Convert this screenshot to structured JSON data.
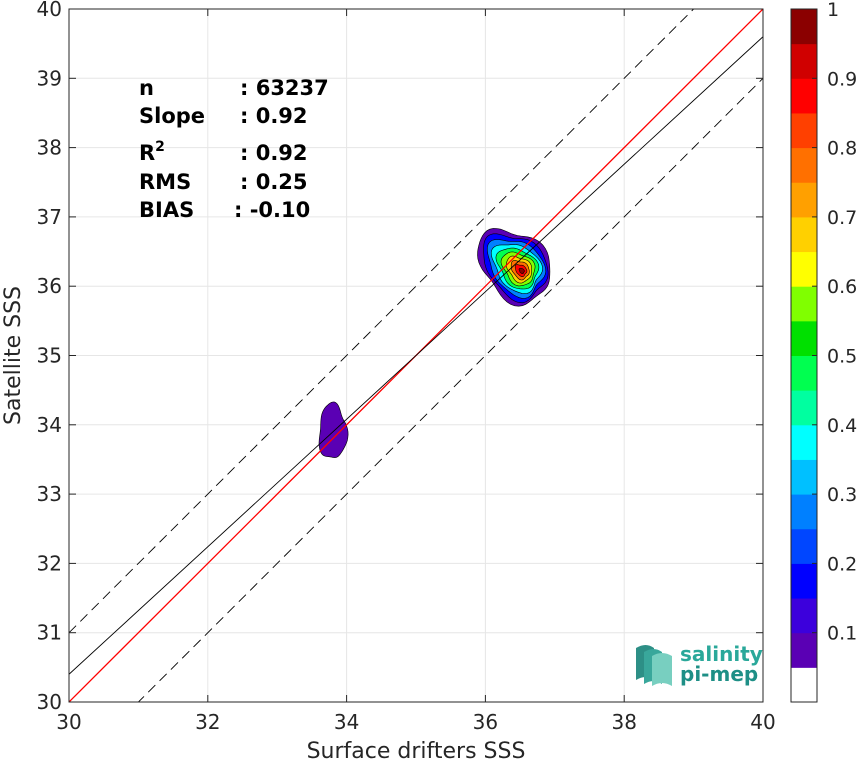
{
  "chart_data": {
    "type": "heatmap",
    "subtype": "density scatter (filled contours) with reference lines",
    "xlabel": "Surface drifters SSS",
    "ylabel": "Satellite SSS",
    "xlim": [
      30,
      40
    ],
    "ylim": [
      30,
      40
    ],
    "xticks": [
      "30",
      "32",
      "34",
      "36",
      "38",
      "40"
    ],
    "yticks": [
      "30",
      "31",
      "32",
      "33",
      "34",
      "35",
      "36",
      "37",
      "38",
      "39",
      "40"
    ],
    "grid": true,
    "stats": [
      {
        "label": "n",
        "value": ": 63237"
      },
      {
        "label": "Slope",
        "value": ": 0.92"
      },
      {
        "label": "R2",
        "value": ": 0.92"
      },
      {
        "label": "RMS",
        "value": ": 0.25"
      },
      {
        "label": "BIAS",
        "value": ": -0.10"
      }
    ],
    "lines": [
      {
        "style": "identity",
        "color": "#ff0000",
        "points": [
          [
            30,
            30
          ],
          [
            40,
            40
          ]
        ]
      },
      {
        "style": "regression",
        "color": "#000000",
        "points": [
          [
            30,
            30.4
          ],
          [
            40,
            39.6
          ]
        ]
      },
      {
        "style": "dashed",
        "color": "#000000",
        "points": [
          [
            30,
            31.0
          ],
          [
            40,
            41.0
          ]
        ]
      },
      {
        "style": "dashed",
        "color": "#000000",
        "points": [
          [
            30.0,
            29.0
          ],
          [
            40,
            39.0
          ]
        ]
      }
    ],
    "density_clusters": [
      {
        "center": [
          36.42,
          36.3
        ],
        "extent_x": [
          35.6,
          37.05
        ],
        "extent_y": [
          35.35,
          37.0
        ],
        "peak": 1.0
      },
      {
        "center": [
          33.8,
          33.9
        ],
        "extent_x": [
          33.6,
          34.0
        ],
        "extent_y": [
          33.5,
          34.3
        ],
        "peak": 0.1
      }
    ],
    "colorbar": {
      "range": [
        0,
        1
      ],
      "ticks": [
        "0.1",
        "0.2",
        "0.3",
        "0.4",
        "0.5",
        "0.6",
        "0.7",
        "0.8",
        "0.9",
        "1"
      ],
      "colors": [
        "#ffffff",
        "#5a00b4",
        "#3c00dc",
        "#0000ff",
        "#0046ff",
        "#0080ff",
        "#00c0ff",
        "#00ffff",
        "#00ffa0",
        "#00ff50",
        "#00e000",
        "#80ff00",
        "#ffff00",
        "#ffd000",
        "#ffa000",
        "#ff7000",
        "#ff4000",
        "#ff0000",
        "#d00000",
        "#8b0000"
      ]
    }
  },
  "logo": {
    "line1": "salinity",
    "line2": "pi-mep"
  }
}
